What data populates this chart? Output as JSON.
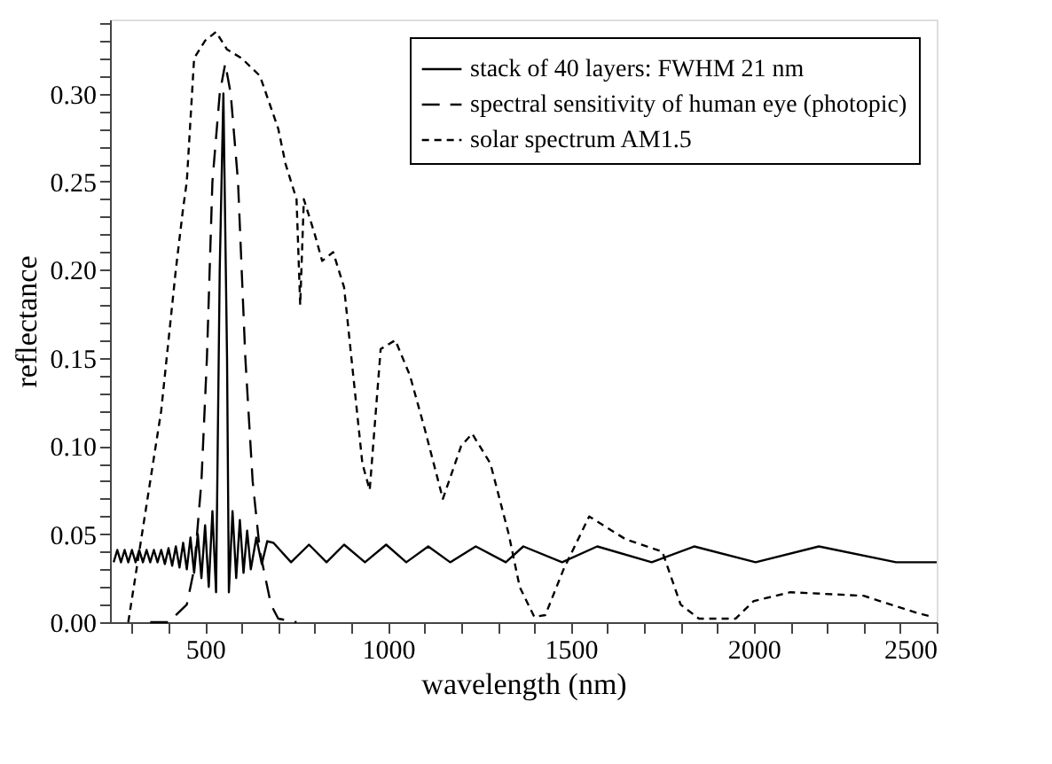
{
  "chart_data": {
    "type": "line",
    "xlabel": "wavelength (nm)",
    "ylabel": "reflectance",
    "xlim": [
      240,
      2500
    ],
    "ylim": [
      0,
      0.342
    ],
    "xticks": [
      {
        "value": 300,
        "label": null
      },
      {
        "value": 400,
        "label": null
      },
      500,
      {
        "value": 600,
        "label": null
      },
      {
        "value": 700,
        "label": null
      },
      {
        "value": 800,
        "label": null
      },
      {
        "value": 900,
        "label": null
      },
      1000,
      {
        "value": 1100,
        "label": null
      },
      {
        "value": 1200,
        "label": null
      },
      {
        "value": 1300,
        "label": null
      },
      {
        "value": 1400,
        "label": null
      },
      1500,
      {
        "value": 1600,
        "label": null
      },
      {
        "value": 1700,
        "label": null
      },
      {
        "value": 1800,
        "label": null
      },
      {
        "value": 1900,
        "label": null
      },
      2000,
      {
        "value": 2100,
        "label": null
      },
      {
        "value": 2200,
        "label": null
      },
      {
        "value": 2300,
        "label": null
      },
      {
        "value": 2400,
        "label": null
      },
      2500
    ],
    "yticks": [
      {
        "value": 0,
        "label": "0.00"
      },
      {
        "value": 0.01,
        "label": null
      },
      {
        "value": 0.02,
        "label": null
      },
      {
        "value": 0.03,
        "label": null
      },
      {
        "value": 0.04,
        "label": null
      },
      0.05,
      {
        "value": 0.06,
        "label": null
      },
      {
        "value": 0.07,
        "label": null
      },
      {
        "value": 0.08,
        "label": null
      },
      {
        "value": 0.09,
        "label": null
      },
      {
        "value": 0.1,
        "label": "0.10"
      },
      {
        "value": 0.11,
        "label": null
      },
      {
        "value": 0.12,
        "label": null
      },
      {
        "value": 0.13,
        "label": null
      },
      {
        "value": 0.14,
        "label": null
      },
      0.15,
      {
        "value": 0.16,
        "label": null
      },
      {
        "value": 0.17,
        "label": null
      },
      {
        "value": 0.18,
        "label": null
      },
      {
        "value": 0.19,
        "label": null
      },
      {
        "value": 0.2,
        "label": "0.20"
      },
      {
        "value": 0.21,
        "label": null
      },
      {
        "value": 0.22,
        "label": null
      },
      {
        "value": 0.23,
        "label": null
      },
      {
        "value": 0.24,
        "label": null
      },
      0.25,
      {
        "value": 0.26,
        "label": null
      },
      {
        "value": 0.27,
        "label": null
      },
      {
        "value": 0.28,
        "label": null
      },
      {
        "value": 0.29,
        "label": null
      },
      {
        "value": 0.3,
        "label": "0.30"
      },
      {
        "value": 0.31,
        "label": null
      },
      {
        "value": 0.32,
        "label": null
      },
      {
        "value": 0.33,
        "label": null
      },
      {
        "value": 0.34,
        "label": null
      }
    ],
    "grid": false,
    "legend": "top right",
    "marker": "none",
    "series": [
      {
        "name": "stack of 40 layers: FWHM 21 nm",
        "color": "#000000",
        "line_style": "solid",
        "x": [
          250,
          260,
          270,
          280,
          290,
          300,
          310,
          320,
          330,
          340,
          350,
          360,
          370,
          380,
          390,
          400,
          410,
          420,
          430,
          440,
          450,
          460,
          470,
          480,
          490,
          500,
          510,
          520,
          530,
          540,
          550,
          560,
          565,
          575,
          585,
          595,
          605,
          615,
          625,
          640,
          655,
          670,
          687,
          735,
          784,
          832,
          880,
          937,
          995,
          1050,
          1110,
          1170,
          1240,
          1322,
          1370,
          1476,
          1572,
          1721,
          1837,
          2005,
          2178,
          2389,
          2500
        ],
        "values": [
          0.034,
          0.041,
          0.034,
          0.041,
          0.034,
          0.041,
          0.034,
          0.041,
          0.034,
          0.041,
          0.034,
          0.041,
          0.034,
          0.041,
          0.033,
          0.042,
          0.032,
          0.043,
          0.031,
          0.045,
          0.03,
          0.048,
          0.028,
          0.05,
          0.025,
          0.055,
          0.02,
          0.063,
          0.017,
          0.2,
          0.3,
          0.15,
          0.017,
          0.063,
          0.025,
          0.058,
          0.028,
          0.052,
          0.03,
          0.048,
          0.033,
          0.046,
          0.045,
          0.034,
          0.044,
          0.034,
          0.044,
          0.034,
          0.044,
          0.034,
          0.043,
          0.034,
          0.043,
          0.034,
          0.043,
          0.034,
          0.043,
          0.034,
          0.043,
          0.034,
          0.043,
          0.034,
          0.034
        ]
      },
      {
        "name": "spectral sensitivity of human eye (photopic)",
        "color": "#000000",
        "line_style": "dashed",
        "x": [
          350,
          400,
          450,
          470,
          490,
          505,
          520,
          540,
          555,
          570,
          590,
          610,
          630,
          650,
          680,
          700,
          750
        ],
        "values": [
          0.0,
          0.0,
          0.01,
          0.03,
          0.08,
          0.15,
          0.25,
          0.3,
          0.317,
          0.3,
          0.25,
          0.15,
          0.08,
          0.04,
          0.01,
          0.002,
          0.0
        ]
      },
      {
        "name": "solar spectrum AM1.5",
        "color": "#000000",
        "line_style": "dotted",
        "x": [
          290,
          320,
          350,
          380,
          420,
          440,
          450,
          470,
          500,
          530,
          560,
          600,
          650,
          700,
          720,
          750,
          760,
          770,
          800,
          820,
          850,
          880,
          900,
          930,
          950,
          980,
          1020,
          1060,
          1100,
          1150,
          1200,
          1230,
          1280,
          1330,
          1360,
          1400,
          1430,
          1480,
          1550,
          1650,
          1750,
          1800,
          1850,
          1950,
          2000,
          2100,
          2300,
          2450,
          2490
        ],
        "values": [
          0.0,
          0.04,
          0.08,
          0.12,
          0.2,
          0.235,
          0.25,
          0.32,
          0.33,
          0.335,
          0.325,
          0.32,
          0.31,
          0.28,
          0.26,
          0.24,
          0.18,
          0.24,
          0.22,
          0.205,
          0.21,
          0.19,
          0.15,
          0.09,
          0.075,
          0.155,
          0.16,
          0.14,
          0.11,
          0.07,
          0.1,
          0.107,
          0.09,
          0.05,
          0.02,
          0.003,
          0.004,
          0.03,
          0.06,
          0.047,
          0.04,
          0.01,
          0.002,
          0.002,
          0.012,
          0.017,
          0.015,
          0.005,
          0.003
        ]
      }
    ]
  }
}
